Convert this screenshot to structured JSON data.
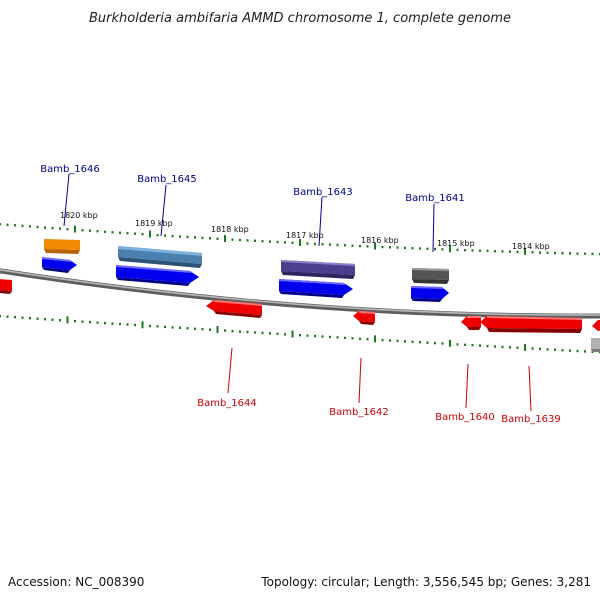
{
  "title": "Burkholderia ambifaria AMMD chromosome 1, complete genome",
  "footer": {
    "accession": "Accession: NC_008390",
    "topology": "Topology: circular; Length: 3,556,545 bp; Genes: 3,281"
  },
  "ticks": [
    "1820 kbp",
    "1819 kbp",
    "1818 kbp",
    "1817 kbp",
    "1816 kbp",
    "1815 kbp",
    "1814 kbp"
  ],
  "genes_forward": [
    "Bamb_1646",
    "Bamb_1645",
    "Bamb_1643",
    "Bamb_1641"
  ],
  "genes_reverse": [
    "Bamb_1644",
    "Bamb_1642",
    "Bamb_1640",
    "Bamb_1639"
  ],
  "colors": {
    "forward_label": "#00008b",
    "reverse_label": "#cc0000",
    "backbone": "#808080",
    "tick": "#1e7a1e",
    "cds_forward": "#0000ee",
    "cds_reverse": "#ee0000",
    "orange": "#f08a00",
    "steelblue": "#4a7fb0",
    "slateblue": "#4a3f8c",
    "darkgray": "#555555",
    "lightgray": "#b0b0b0"
  }
}
